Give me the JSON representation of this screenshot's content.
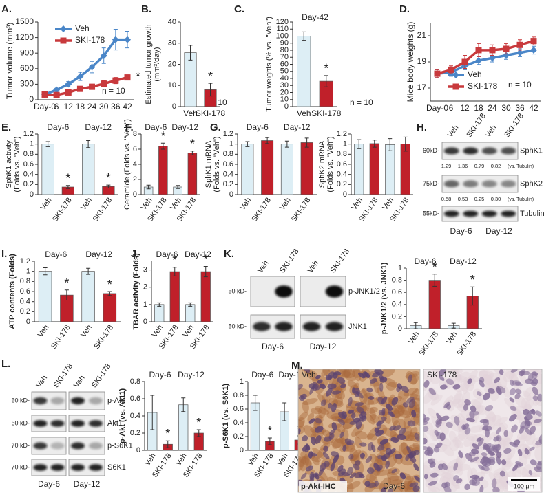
{
  "chart_data": [
    {
      "panel": "A.",
      "type": "line",
      "ylabel": [
        "Tumor volume (mm³)"
      ],
      "categories": [
        "Day-0",
        "6",
        "12",
        "18",
        "24",
        "30",
        "36",
        "42"
      ],
      "series": [
        {
          "name": "Veh",
          "color": "#4a86c8",
          "marker": "diamond",
          "values": [
            100,
            190,
            300,
            450,
            630,
            850,
            1160,
            1160
          ],
          "errors": [
            10,
            30,
            50,
            80,
            110,
            150,
            200,
            160
          ]
        },
        {
          "name": "SKI-178",
          "color": "#c8393c",
          "marker": "square",
          "values": [
            100,
            90,
            140,
            210,
            250,
            310,
            370,
            430
          ],
          "errors": [
            10,
            20,
            30,
            40,
            50,
            60,
            60,
            50
          ],
          "significance": [
            null,
            null,
            null,
            null,
            null,
            null,
            null,
            "*"
          ]
        }
      ],
      "ylim": [
        0,
        1500
      ],
      "yticks": [
        0,
        300,
        600,
        900,
        1200,
        1500
      ],
      "legend": "upper-left",
      "note": "n = 10"
    },
    {
      "panel": "B.",
      "type": "bar",
      "ylabel": [
        "Estimated tumor growth",
        "(mm³/day)"
      ],
      "categories": [
        "Veh",
        "SKI-178"
      ],
      "values": [
        25.5,
        8
      ],
      "errors": [
        3.5,
        3
      ],
      "significance": [
        null,
        "*"
      ],
      "colors": [
        "#ddeef5",
        "#c0202a"
      ],
      "ylim": [
        0,
        40
      ],
      "yticks": [
        0,
        10,
        20,
        30,
        40
      ],
      "note": "n = 10"
    },
    {
      "panel": "C.",
      "type": "bar",
      "subtitle": "Day-42",
      "ylabel": [
        "Tumor weights (% vs. \"Veh\")"
      ],
      "categories": [
        "Veh",
        "SKI-178"
      ],
      "values": [
        100,
        36
      ],
      "errors": [
        6,
        8
      ],
      "significance": [
        null,
        "*"
      ],
      "colors": [
        "#ddeef5",
        "#c0202a"
      ],
      "ylim": [
        0,
        120
      ],
      "yticks": [
        0,
        10,
        20,
        30,
        40,
        50,
        60,
        70,
        80,
        90,
        100,
        110,
        120
      ],
      "note": "n = 10"
    },
    {
      "panel": "D.",
      "type": "line",
      "ylabel": [
        "Mice body weights (g)"
      ],
      "categories": [
        "Day-0",
        "6",
        "12",
        "18",
        "24",
        "30",
        "36",
        "42"
      ],
      "series": [
        {
          "name": "Veh",
          "color": "#4a86c8",
          "marker": "diamond",
          "values": [
            18.1,
            18.2,
            18.7,
            19.1,
            19.3,
            19.5,
            19.7,
            19.9
          ],
          "errors": [
            0.3,
            0.3,
            0.3,
            0.3,
            0.3,
            0.3,
            0.3,
            0.3
          ]
        },
        {
          "name": "SKI-178",
          "color": "#c8393c",
          "marker": "square",
          "values": [
            18.1,
            18.4,
            19,
            19.9,
            19.9,
            20,
            20.3,
            20.6
          ],
          "errors": [
            0.3,
            0.3,
            0.5,
            0.5,
            0.4,
            0.4,
            0.4,
            0.3
          ]
        }
      ],
      "ylim": [
        16,
        22
      ],
      "yticks": [
        17,
        19,
        21
      ],
      "legend": "lower-left",
      "note": "n = 10"
    },
    {
      "panel": "E.",
      "type": "bar",
      "ylabel": [
        "SphK1 activity",
        "(Folds vs. \"Veh\")"
      ],
      "categories": [
        "Veh",
        "SKI-178",
        "Veh",
        "SKI-178"
      ],
      "groups": [
        "Day-6",
        "Day-12"
      ],
      "values": [
        1,
        0.15,
        1,
        0.16
      ],
      "errors": [
        0.05,
        0.03,
        0.07,
        0.03
      ],
      "significance": [
        null,
        "*",
        null,
        "*"
      ],
      "colors": [
        "#ddeef5",
        "#c0202a",
        "#ddeef5",
        "#c0202a"
      ],
      "ylim": [
        0,
        1.2
      ],
      "yticks": [
        0,
        0.2,
        0.4,
        0.6,
        0.8,
        1,
        1.2
      ]
    },
    {
      "panel": "F.",
      "type": "bar",
      "ylabel": [
        "Ceramide (Folds vs. \"Veh\")"
      ],
      "categories": [
        "Veh",
        "SKI-178",
        "Veh",
        "SKI-178"
      ],
      "groups": [
        "Day-6",
        "Day-12"
      ],
      "values": [
        1,
        6.4,
        1,
        5.5
      ],
      "errors": [
        0.25,
        0.4,
        0.2,
        0.25
      ],
      "significance": [
        null,
        "*",
        null,
        "*"
      ],
      "colors": [
        "#ddeef5",
        "#c0202a",
        "#ddeef5",
        "#c0202a"
      ],
      "ylim": [
        0,
        8
      ],
      "yticks": [
        0,
        2,
        4,
        6,
        8
      ]
    },
    {
      "panel": "G.",
      "type": "bar",
      "ylabel": [
        "SphK1 mRNA",
        "(Folds vs. \"Veh\")"
      ],
      "categories": [
        "Veh",
        "SKI-178",
        "Veh",
        "SKI-178"
      ],
      "groups": [
        "Day-6",
        "Day-12"
      ],
      "values": [
        1,
        1.07,
        1,
        1.03
      ],
      "errors": [
        0.05,
        0.06,
        0.06,
        0.09
      ],
      "colors": [
        "#ddeef5",
        "#c0202a",
        "#ddeef5",
        "#c0202a"
      ],
      "ylim": [
        0,
        1.2
      ],
      "yticks": [
        0,
        0.2,
        0.4,
        0.6,
        0.8,
        1,
        1.2
      ]
    },
    {
      "type": "bar",
      "ylabel": [
        "SphK2 mRNA",
        "(Folds vs. \"Veh\")"
      ],
      "categories": [
        "Veh",
        "SKI-178",
        "Veh",
        "SKI-178"
      ],
      "values": [
        1,
        1.01,
        0.99,
        1
      ],
      "errors": [
        0.09,
        0.07,
        0.12,
        0.14
      ],
      "colors": [
        "#ddeef5",
        "#c0202a",
        "#ddeef5",
        "#c0202a"
      ],
      "ylim": [
        0,
        1.2
      ],
      "yticks": [
        0,
        0.2,
        0.4,
        0.6,
        0.8,
        1,
        1.2
      ]
    },
    {
      "panel": "I.",
      "type": "bar",
      "ylabel": [
        "ATP contents (Folds)"
      ],
      "categories": [
        "Veh",
        "SKI-178",
        "Veh",
        "SKI-178"
      ],
      "groups": [
        "Day-6",
        "Day-12"
      ],
      "values": [
        1,
        0.53,
        1,
        0.56
      ],
      "errors": [
        0.07,
        0.1,
        0.06,
        0.04
      ],
      "significance": [
        null,
        "*",
        null,
        "*"
      ],
      "colors": [
        "#ddeef5",
        "#c0202a",
        "#ddeef5",
        "#c0202a"
      ],
      "ylim": [
        0,
        1.2
      ],
      "yticks": [
        0,
        0.2,
        0.4,
        0.6,
        0.8,
        1,
        1.2
      ]
    },
    {
      "panel": "J.",
      "type": "bar",
      "ylabel": [
        "TBAR activity (Folds)"
      ],
      "categories": [
        "Veh",
        "SKI-178",
        "Veh",
        "SKI-178"
      ],
      "groups": [
        "Day-6",
        "Day-12"
      ],
      "values": [
        1,
        2.9,
        1,
        2.9
      ],
      "errors": [
        0.1,
        0.25,
        0.1,
        0.3
      ],
      "significance": [
        null,
        "*",
        null,
        "*"
      ],
      "colors": [
        "#ddeef5",
        "#c0202a",
        "#ddeef5",
        "#c0202a"
      ],
      "ylim": [
        0,
        3.5
      ],
      "yticks": [
        0,
        1,
        2,
        3
      ]
    },
    {
      "type": "bar",
      "ylabel": [
        "p-JNK1/2 (vs. JNK1)"
      ],
      "categories": [
        "Veh",
        "SKI-178",
        "Veh",
        "SKI-178"
      ],
      "groups": [
        "Day-6",
        "Day-12"
      ],
      "values": [
        0.05,
        0.8,
        0.05,
        0.54
      ],
      "errors": [
        0.05,
        0.1,
        0.04,
        0.15
      ],
      "significance": [
        null,
        "*",
        null,
        "*"
      ],
      "colors": [
        "#ddeef5",
        "#c0202a",
        "#ddeef5",
        "#c0202a"
      ],
      "ylim": [
        0,
        1
      ],
      "yticks": [
        0,
        0.2,
        0.4,
        0.6,
        0.8,
        1
      ]
    },
    {
      "type": "bar",
      "ylabel": [
        "p-Akt (vs. Akt1)"
      ],
      "categories": [
        "Veh",
        "SKI-178",
        "Veh",
        "SKI-178"
      ],
      "groups": [
        "Day-6",
        "Day-12"
      ],
      "values": [
        0.44,
        0.07,
        0.53,
        0.2
      ],
      "errors": [
        0.2,
        0.04,
        0.08,
        0.04
      ],
      "significance": [
        null,
        "*",
        null,
        "*"
      ],
      "colors": [
        "#ddeef5",
        "#c0202a",
        "#ddeef5",
        "#c0202a"
      ],
      "ylim": [
        0,
        0.8
      ],
      "yticks": [
        0,
        0.2,
        0.4,
        0.6,
        0.8
      ]
    },
    {
      "type": "bar",
      "ylabel": [
        "p-S6K1 (vs. S6K1)"
      ],
      "categories": [
        "Veh",
        "SKI-178",
        "Veh",
        "SKI-178"
      ],
      "groups": [
        "Day-6",
        "Day-12"
      ],
      "values": [
        0.69,
        0.13,
        0.56,
        0.15
      ],
      "errors": [
        0.11,
        0.05,
        0.13,
        0.06
      ],
      "significance": [
        null,
        "*",
        null,
        "*"
      ],
      "colors": [
        "#ddeef5",
        "#c0202a",
        "#ddeef5",
        "#c0202a"
      ],
      "ylim": [
        0,
        1
      ],
      "yticks": [
        0,
        0.2,
        0.4,
        0.6,
        0.8,
        1
      ]
    }
  ],
  "blots": [
    {
      "panel": "H.",
      "lanes": [
        "Veh",
        "SKI-178",
        "Veh",
        "SKI-178"
      ],
      "lane_colors": [
        "#666666",
        "#c0202a",
        "#666666",
        "#c0202a"
      ],
      "groups": [
        "Day-6",
        "Day-12"
      ],
      "rows": [
        {
          "marker": "60kD-",
          "label": "SphK1",
          "quant": [
            "1.29",
            "1.36",
            "0.79",
            "0.82"
          ],
          "quant_note": "(vs. Tubulin)"
        },
        {
          "marker": "75kD-",
          "label": "SphK2",
          "quant": [
            "0.58",
            "0.53",
            "0.25",
            "0.30"
          ],
          "quant_note": "(vs. Tubulin)"
        },
        {
          "marker": "55kD-",
          "label": "Tubulin"
        }
      ]
    },
    {
      "panel": "K.",
      "lanes": [
        "Veh",
        "SKI-178",
        "Veh",
        "SKI-178"
      ],
      "lane_colors": [
        "#666666",
        "#c0202a",
        "#666666",
        "#c0202a"
      ],
      "groups": [
        "Day-6",
        "Day-12"
      ],
      "rows": [
        {
          "marker": "50 kD-",
          "label": "p-JNK1/2"
        },
        {
          "marker": "50 kD-",
          "label": "JNK1"
        }
      ]
    },
    {
      "panel": "L.",
      "lanes": [
        "Veh",
        "SKI-178",
        "Veh",
        "SKI-178"
      ],
      "lane_colors": [
        "#666666",
        "#c0202a",
        "#666666",
        "#c0202a"
      ],
      "groups": [
        "Day-6",
        "Day-12"
      ],
      "rows": [
        {
          "marker": "60 kD-",
          "label": "p-Akt"
        },
        {
          "marker": "60 kD-",
          "label": "Akt1"
        },
        {
          "marker": "70 kD-",
          "label": "p-S6K1"
        },
        {
          "marker": "70 kD-",
          "label": "S6K1"
        }
      ]
    }
  ],
  "ihc": {
    "panel": "M.",
    "images": [
      {
        "label": "Veh"
      },
      {
        "label": "SKI-178"
      }
    ],
    "stain": "p-Akt-IHC",
    "group": "Day-6",
    "scale_bar": "100 μm"
  }
}
